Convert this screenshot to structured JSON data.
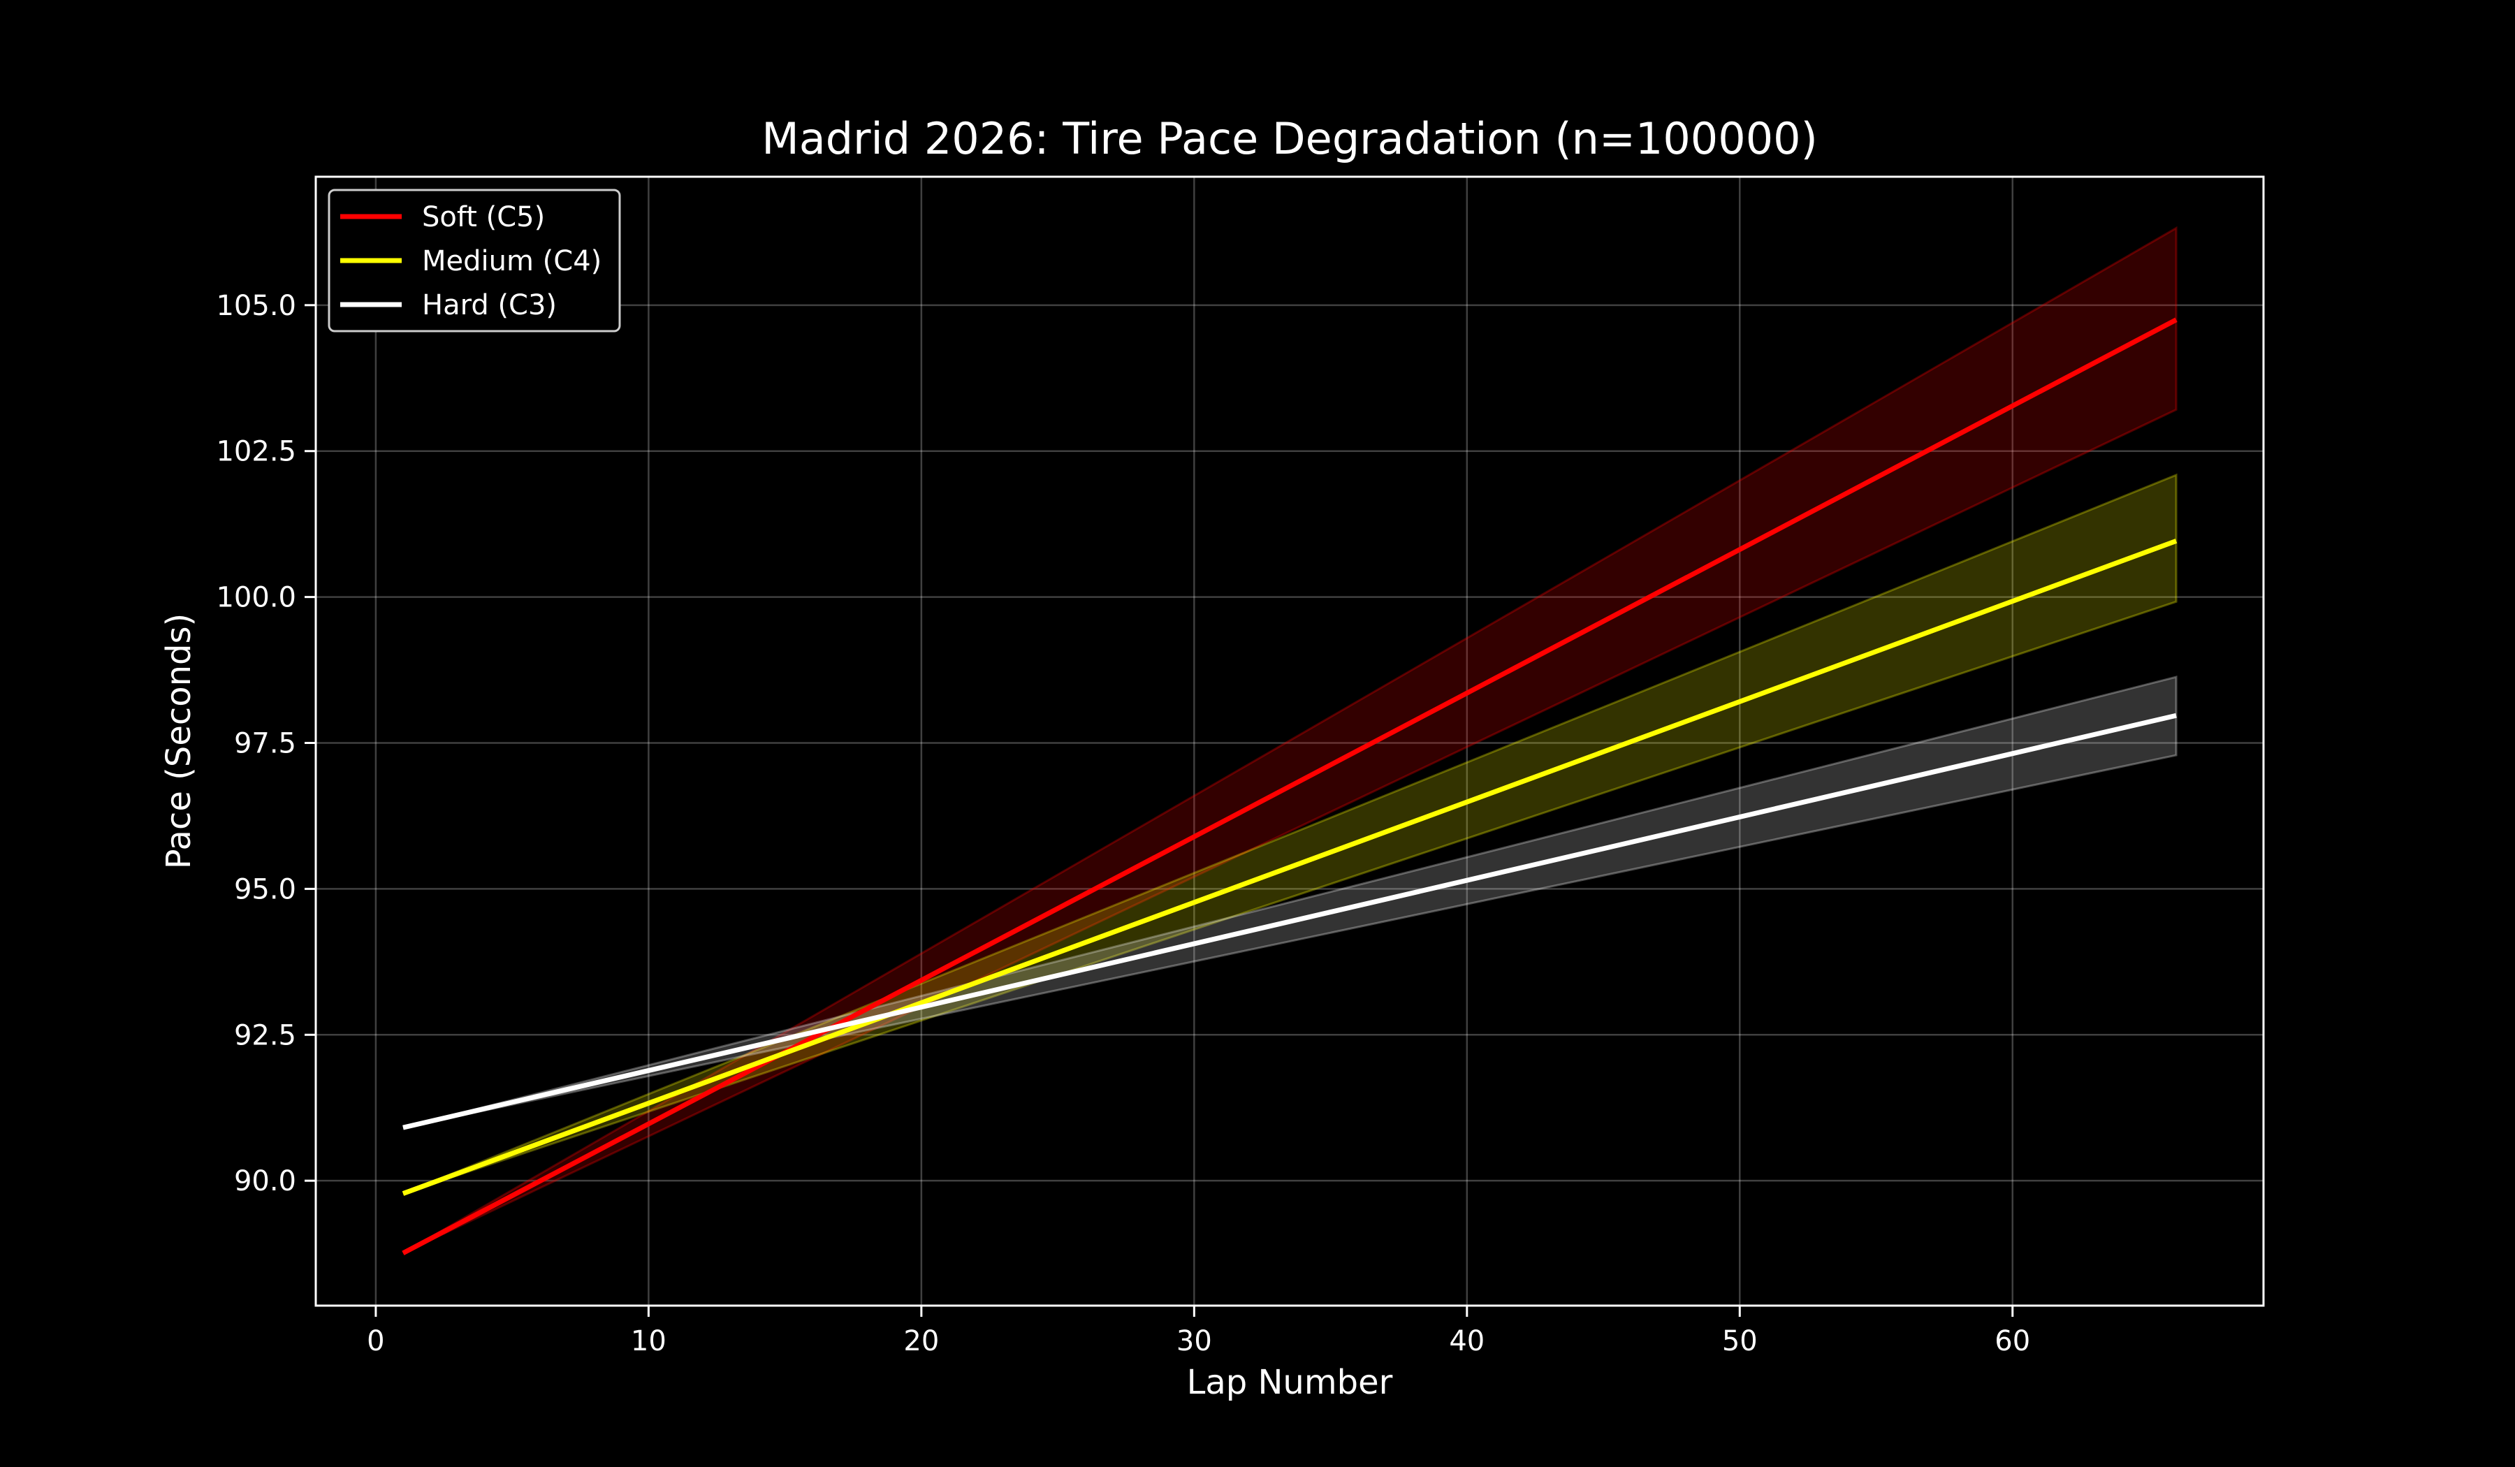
{
  "chart_data": {
    "type": "line",
    "title": "Madrid 2026: Tire Pace Degradation (n=100000)",
    "xlabel": "Lap Number",
    "ylabel": "Pace (Seconds)",
    "xlim": [
      -2.2,
      69.2
    ],
    "ylim": [
      87.86,
      107.2
    ],
    "xticks": [
      0,
      10,
      20,
      30,
      40,
      50,
      60
    ],
    "yticks": [
      "90.0",
      "92.5",
      "95.0",
      "97.5",
      "100.0",
      "102.5",
      "105.0"
    ],
    "grid": true,
    "legend_position": "top-left",
    "background": "#000000",
    "x": [
      1,
      66
    ],
    "series": [
      {
        "name": "Soft (C5)",
        "color": "#ff0000",
        "band_color": "#330000",
        "values": [
          88.76,
          104.75
        ],
        "band_low": [
          88.76,
          103.21
        ],
        "band_high": [
          88.76,
          106.32
        ]
      },
      {
        "name": "Medium (C4)",
        "color": "#ffff00",
        "band_color": "#333300",
        "values": [
          89.78,
          100.96
        ],
        "band_low": [
          89.78,
          99.92
        ],
        "band_high": [
          89.78,
          102.09
        ]
      },
      {
        "name": "Hard (C3)",
        "color": "#ffffff",
        "band_color": "#333333",
        "values": [
          90.91,
          97.97
        ],
        "band_low": [
          90.91,
          97.29
        ],
        "band_high": [
          90.91,
          98.63
        ]
      }
    ]
  }
}
